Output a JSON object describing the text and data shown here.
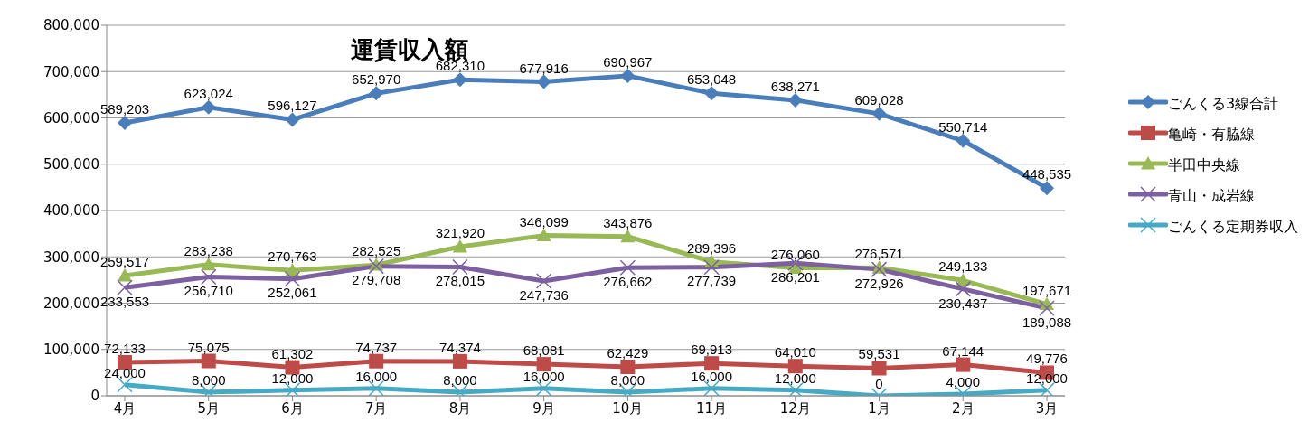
{
  "chart_data": {
    "type": "line",
    "title": "運賃収入額",
    "categories": [
      "4月",
      "5月",
      "6月",
      "7月",
      "8月",
      "9月",
      "10月",
      "11月",
      "12月",
      "1月",
      "2月",
      "3月"
    ],
    "series": [
      {
        "name": "ごんくる3線合計",
        "color": "#4a7ebb",
        "marker": "diamond",
        "values": [
          589203,
          623024,
          596127,
          652970,
          682310,
          677916,
          690967,
          653048,
          638271,
          609028,
          550714,
          448535
        ],
        "value_labels": [
          "589,203",
          "623,024",
          "596,127",
          "652,970",
          "682,310",
          "677,916",
          "690,967",
          "653,048",
          "638,271",
          "609,028",
          "550,714",
          "448,535"
        ]
      },
      {
        "name": "亀崎・有脇線",
        "color": "#be4b48",
        "marker": "square",
        "values": [
          72133,
          75075,
          61302,
          74737,
          74374,
          68081,
          62429,
          69913,
          64010,
          59531,
          67144,
          49776
        ],
        "value_labels": [
          "72,133",
          "75,075",
          "61,302",
          "74,737",
          "74,374",
          "68,081",
          "62,429",
          "69,913",
          "64,010",
          "59,531",
          "67,144",
          "49,776"
        ]
      },
      {
        "name": "半田中央線",
        "color": "#98b954",
        "marker": "triangle",
        "values": [
          259517,
          283238,
          270763,
          282525,
          321920,
          346099,
          343876,
          289396,
          276060,
          276571,
          249133,
          197671
        ],
        "value_labels": [
          "259,517",
          "283,238",
          "270,763",
          "282,525",
          "321,920",
          "346,099",
          "343,876",
          "289,396",
          "276,060",
          "276,571",
          "249,133",
          "197,671"
        ]
      },
      {
        "name": "青山・成岩線",
        "color": "#7d60a0",
        "marker": "cross",
        "values": [
          233553,
          256710,
          252061,
          279708,
          278015,
          247736,
          276662,
          277739,
          286201,
          272926,
          230437,
          189088
        ],
        "value_labels": [
          "233,553",
          "256,710",
          "252,061",
          "279,708",
          "278,015",
          "247,736",
          "276,662",
          "277,739",
          "286,201",
          "272,926",
          "230,437",
          "189,088"
        ]
      },
      {
        "name": "ごんくる定期券収入",
        "color": "#46aac5",
        "marker": "cross",
        "values": [
          24000,
          8000,
          12000,
          16000,
          8000,
          16000,
          8000,
          16000,
          12000,
          0,
          4000,
          12000
        ],
        "value_labels": [
          "24,000",
          "8,000",
          "12,000",
          "16,000",
          "8,000",
          "16,000",
          "8,000",
          "16,000",
          "12,000",
          "0",
          "4,000",
          "12,000"
        ]
      }
    ],
    "ylim": [
      0,
      800000
    ],
    "yticks": [
      0,
      {
        "value": 100000,
        "label": "100,000"
      },
      {
        "value": 200000,
        "label": "200,000"
      },
      {
        "value": 300000,
        "label": "300,000"
      },
      {
        "value": 400000,
        "label": "400,000"
      },
      {
        "value": 500000,
        "label": "500,000"
      },
      {
        "value": 600000,
        "label": "600,000"
      },
      {
        "value": 700000,
        "label": "700,000"
      },
      {
        "value": 800000,
        "label": "800,000"
      }
    ],
    "grid": "y",
    "legend": "right"
  }
}
